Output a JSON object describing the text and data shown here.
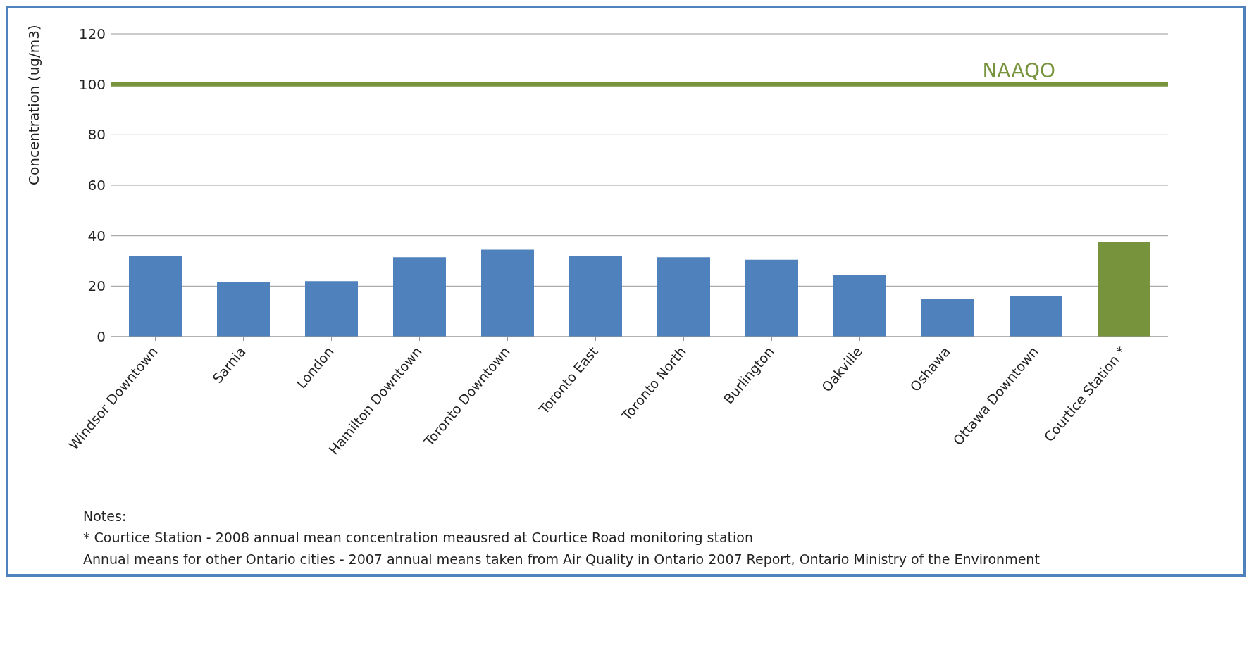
{
  "chart_data": {
    "type": "bar",
    "ylabel": "Concentration (ug/m3)",
    "categories": [
      "Windsor Downtown",
      "Sarnia",
      "London",
      "Hamilton Downtown",
      "Toronto Downtown",
      "Toronto East",
      "Toronto North",
      "Burlington",
      "Oakville",
      "Oshawa",
      "Ottawa Downtown",
      "Courtice Station *"
    ],
    "values": [
      32,
      21.5,
      22,
      31.5,
      34.5,
      32,
      31.5,
      30.5,
      24.5,
      15,
      16,
      37.5
    ],
    "colors": [
      "#4f81bd",
      "#4f81bd",
      "#4f81bd",
      "#4f81bd",
      "#4f81bd",
      "#4f81bd",
      "#4f81bd",
      "#4f81bd",
      "#4f81bd",
      "#4f81bd",
      "#4f81bd",
      "#77933c"
    ],
    "ylim": [
      0,
      120
    ],
    "yticks": [
      0,
      20,
      40,
      60,
      80,
      100,
      120
    ],
    "grid": "y",
    "ref_lines": [
      {
        "axis": "y",
        "value": 100,
        "label": "NAAQO",
        "color": "#77933c"
      }
    ],
    "annotations": [
      "Notes:",
      "* Courtice Station - 2008 annual mean concentration meausred at Courtice Road monitoring station",
      "Annual means for other Ontario cities - 2007 annual means  taken from  Air Quality in Ontario 2007 Report, Ontario Ministry of the Environment"
    ]
  }
}
